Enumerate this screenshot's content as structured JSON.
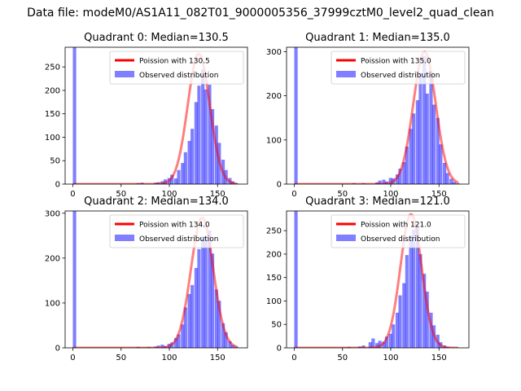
{
  "suptitle": "Data file: modeM0/AS1A11_082T01_9000005356_37999cztM0_level2_quad_clean",
  "colors": {
    "poisson": "#ff0000",
    "observed": "#0000ff"
  },
  "chart_data": [
    {
      "type": "bar+line",
      "title": "Quadrant 0: Median=130.5",
      "median": 130.5,
      "xlim": [
        -8,
        181
      ],
      "ylim": [
        0,
        292
      ],
      "xticks": [
        0,
        50,
        100,
        150
      ],
      "yticks": [
        0,
        50,
        100,
        150,
        200,
        250
      ],
      "legend": {
        "position": "upper right",
        "entries": [
          "Poission with 130.5",
          "Observed distribution"
        ]
      },
      "poisson_peak": 278,
      "observed": {
        "name": "Observed distribution",
        "bin_width": 3.5,
        "bins": [
          [
            0,
            292
          ],
          [
            66,
            2
          ],
          [
            70,
            3
          ],
          [
            84,
            3
          ],
          [
            87,
            4
          ],
          [
            91,
            6
          ],
          [
            94,
            10
          ],
          [
            98,
            13
          ],
          [
            101,
            20
          ],
          [
            105,
            12
          ],
          [
            108,
            30
          ],
          [
            112,
            45
          ],
          [
            115,
            68
          ],
          [
            119,
            92
          ],
          [
            122,
            118
          ],
          [
            126,
            175
          ],
          [
            129,
            210
          ],
          [
            133,
            245
          ],
          [
            136,
            202
          ],
          [
            140,
            212
          ],
          [
            143,
            160
          ],
          [
            147,
            125
          ],
          [
            150,
            88
          ],
          [
            154,
            52
          ],
          [
            157,
            30
          ],
          [
            161,
            13
          ],
          [
            164,
            6
          ],
          [
            168,
            2
          ]
        ]
      }
    },
    {
      "type": "bar+line",
      "title": "Quadrant 1: Median=135.0",
      "median": 135.0,
      "xlim": [
        -8,
        181
      ],
      "ylim": [
        0,
        310
      ],
      "xticks": [
        0,
        50,
        100,
        150
      ],
      "yticks": [
        0,
        100,
        200,
        300
      ],
      "legend": {
        "position": "upper right",
        "entries": [
          "Poission with 135.0",
          "Observed distribution"
        ]
      },
      "poisson_peak": 300,
      "observed": {
        "name": "Observed distribution",
        "bin_width": 3.5,
        "bins": [
          [
            0,
            310
          ],
          [
            60,
            2
          ],
          [
            70,
            2
          ],
          [
            84,
            4
          ],
          [
            87,
            8
          ],
          [
            91,
            10
          ],
          [
            94,
            6
          ],
          [
            98,
            14
          ],
          [
            101,
            13
          ],
          [
            105,
            22
          ],
          [
            108,
            35
          ],
          [
            112,
            50
          ],
          [
            115,
            85
          ],
          [
            119,
            125
          ],
          [
            122,
            160
          ],
          [
            126,
            190
          ],
          [
            129,
            252
          ],
          [
            133,
            290
          ],
          [
            136,
            205
          ],
          [
            140,
            255
          ],
          [
            143,
            180
          ],
          [
            147,
            150
          ],
          [
            150,
            90
          ],
          [
            154,
            48
          ],
          [
            157,
            25
          ],
          [
            161,
            12
          ],
          [
            164,
            5
          ],
          [
            168,
            2
          ]
        ]
      }
    },
    {
      "type": "bar+line",
      "title": "Quadrant 2: Median=134.0",
      "median": 134.0,
      "xlim": [
        -8,
        181
      ],
      "ylim": [
        0,
        305
      ],
      "xticks": [
        0,
        50,
        100,
        150
      ],
      "yticks": [
        0,
        100,
        200,
        300
      ],
      "legend": {
        "position": "upper right",
        "entries": [
          "Poission with 134.0",
          "Observed distribution"
        ]
      },
      "poisson_peak": 290,
      "observed": {
        "name": "Observed distribution",
        "bin_width": 3.5,
        "bins": [
          [
            0,
            305
          ],
          [
            66,
            2
          ],
          [
            77,
            2
          ],
          [
            84,
            3
          ],
          [
            87,
            5
          ],
          [
            91,
            7
          ],
          [
            94,
            4
          ],
          [
            98,
            9
          ],
          [
            101,
            12
          ],
          [
            105,
            22
          ],
          [
            108,
            30
          ],
          [
            112,
            52
          ],
          [
            115,
            90
          ],
          [
            119,
            120
          ],
          [
            122,
            140
          ],
          [
            126,
            178
          ],
          [
            129,
            220
          ],
          [
            133,
            248
          ],
          [
            136,
            248
          ],
          [
            140,
            262
          ],
          [
            143,
            210
          ],
          [
            147,
            130
          ],
          [
            150,
            105
          ],
          [
            154,
            55
          ],
          [
            157,
            35
          ],
          [
            161,
            15
          ],
          [
            164,
            6
          ],
          [
            168,
            3
          ]
        ]
      }
    },
    {
      "type": "bar+line",
      "title": "Quadrant 3: Median=121.0",
      "median": 121.0,
      "xlim": [
        -8,
        181
      ],
      "ylim": [
        0,
        292
      ],
      "xticks": [
        0,
        50,
        100,
        150
      ],
      "yticks": [
        0,
        50,
        100,
        150,
        200,
        250
      ],
      "legend": {
        "position": "upper right",
        "entries": [
          "Poission with 121.0",
          "Observed distribution"
        ]
      },
      "poisson_peak": 285,
      "observed": {
        "name": "Observed distribution",
        "bin_width": 3.5,
        "bins": [
          [
            0,
            292
          ],
          [
            55,
            2
          ],
          [
            66,
            3
          ],
          [
            70,
            5
          ],
          [
            77,
            12
          ],
          [
            80,
            20
          ],
          [
            84,
            10
          ],
          [
            87,
            15
          ],
          [
            91,
            13
          ],
          [
            94,
            24
          ],
          [
            98,
            30
          ],
          [
            101,
            50
          ],
          [
            105,
            75
          ],
          [
            108,
            112
          ],
          [
            112,
            138
          ],
          [
            115,
            198
          ],
          [
            119,
            240
          ],
          [
            122,
            252
          ],
          [
            126,
            258
          ],
          [
            129,
            200
          ],
          [
            133,
            158
          ],
          [
            136,
            120
          ],
          [
            140,
            75
          ],
          [
            143,
            48
          ],
          [
            147,
            28
          ],
          [
            150,
            12
          ],
          [
            154,
            5
          ],
          [
            157,
            2
          ]
        ]
      }
    }
  ]
}
